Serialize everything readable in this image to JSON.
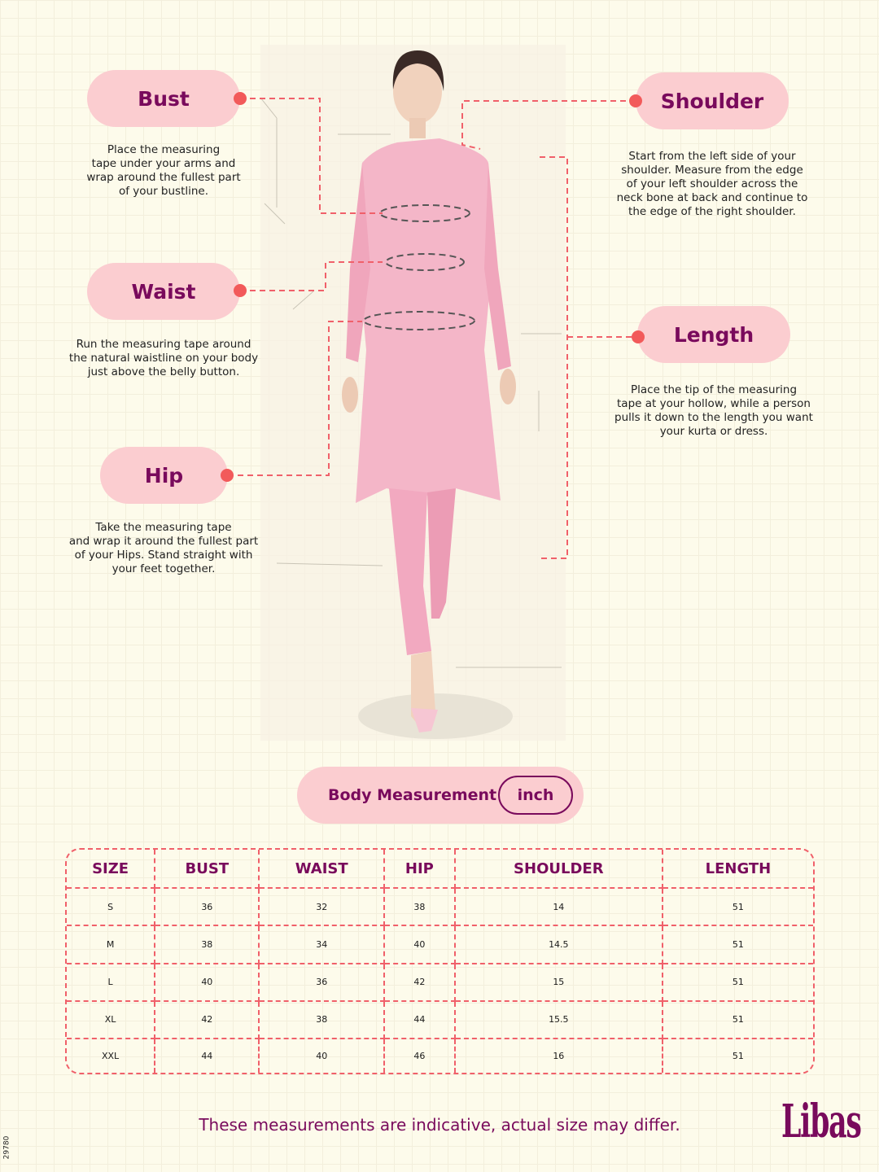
{
  "measurements": {
    "bust": {
      "label": "Bust",
      "description": [
        "Place the measuring",
        "tape under your arms and",
        "wrap around the fullest part",
        "of your bustline."
      ]
    },
    "waist": {
      "label": "Waist",
      "description": [
        "Run the measuring tape around",
        "the natural waistline on your body",
        "just above the belly button."
      ]
    },
    "hip": {
      "label": "Hip",
      "description": [
        "Take the measuring tape",
        "and wrap it around the fullest part",
        "of your Hips. Stand straight with",
        "your feet together."
      ]
    },
    "shoulder": {
      "label": "Shoulder",
      "description": [
        "Start from the left side of your",
        "shoulder. Measure from the edge",
        "of your left shoulder across the",
        "neck bone at back and continue to",
        "the edge of the right shoulder."
      ]
    },
    "length": {
      "label": "Length",
      "description": [
        "Place the tip of the measuring",
        "tape at your hollow, while a person",
        "pulls it down to the length you want",
        "your kurta or dress."
      ]
    }
  },
  "body_measurement": {
    "label": "Body Measurement",
    "unit": "inch"
  },
  "table": {
    "headers": [
      "SIZE",
      "BUST",
      "WAIST",
      "HIP",
      "SHOULDER",
      "LENGTH"
    ],
    "rows": [
      [
        "S",
        "36",
        "32",
        "38",
        "14",
        "51"
      ],
      [
        "M",
        "38",
        "34",
        "40",
        "14.5",
        "51"
      ],
      [
        "L",
        "40",
        "36",
        "42",
        "15",
        "51"
      ],
      [
        "XL",
        "42",
        "38",
        "44",
        "15.5",
        "51"
      ],
      [
        "XXL",
        "44",
        "40",
        "46",
        "16",
        "51"
      ]
    ]
  },
  "footer_note": "These measurements are indicative, actual size may differ.",
  "brand": "Libas",
  "code": "29780",
  "colors": {
    "accent": "#790a5c",
    "pill": "#fbcdd0",
    "dash": "#f0606a",
    "background": "#fdfbeb"
  }
}
